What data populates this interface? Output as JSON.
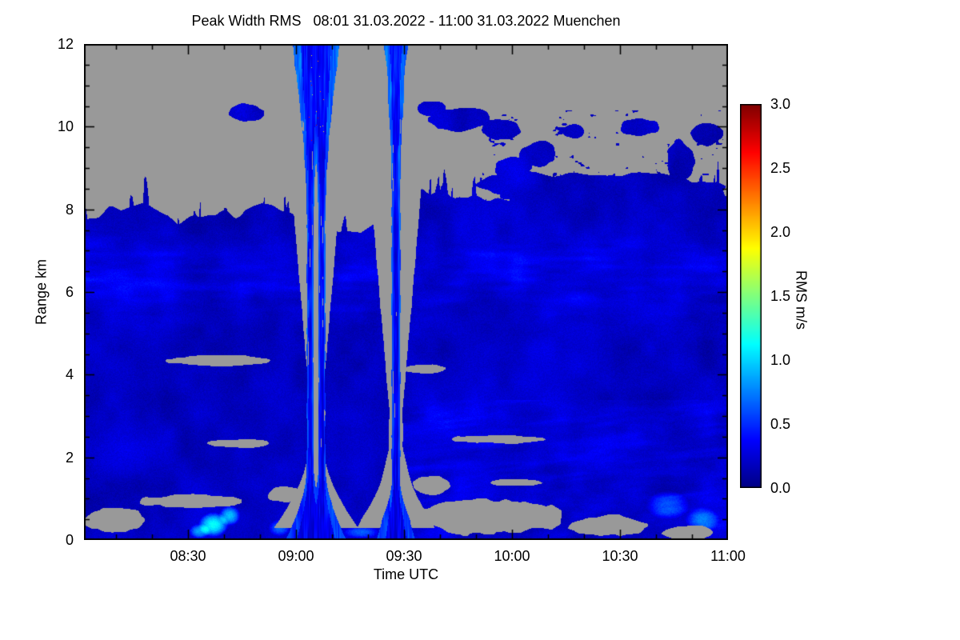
{
  "title": "Peak Width RMS   08:01 31.03.2022 - 11:00 31.03.2022 Muenchen",
  "axes": {
    "x": {
      "label": "Time UTC",
      "tick_labels": [
        "08:30",
        "09:00",
        "09:30",
        "10:00",
        "10:30",
        "11:00"
      ],
      "tick_hours": [
        8.5,
        9.0,
        9.5,
        10.0,
        10.5,
        11.0
      ],
      "minor_step_minutes": 10
    },
    "y": {
      "label": "Range km",
      "tick_labels": [
        "0",
        "2",
        "4",
        "6",
        "8",
        "10",
        "12"
      ],
      "tick_values": [
        0,
        2,
        4,
        6,
        8,
        10,
        12
      ],
      "minor_step_km": 0.5
    }
  },
  "colorbar": {
    "label": "RMS m/s",
    "tick_labels": [
      "0.0",
      "0.5",
      "1.0",
      "1.5",
      "2.0",
      "2.5",
      "3.0"
    ],
    "tick_values": [
      0,
      0.5,
      1.0,
      1.5,
      2.0,
      2.5,
      3.0
    ],
    "min": 0,
    "max": 3
  },
  "chart_data": {
    "type": "heatmap",
    "title": "Peak Width RMS 08:01 31.03.2022 - 11:00 31.03.2022 Muenchen",
    "xlabel": "Time UTC",
    "ylabel": "Range km",
    "value_label": "RMS m/s",
    "x_range_hours": [
      8.0167,
      11.0
    ],
    "y_range_km": [
      0,
      12
    ],
    "value_range": [
      0,
      3
    ],
    "background_no_data_color": "#999999",
    "colormap": [
      {
        "u": 0.0,
        "color": "#000082"
      },
      {
        "u": 0.125,
        "color": "#0000ff"
      },
      {
        "u": 0.375,
        "color": "#00ffff"
      },
      {
        "u": 0.625,
        "color": "#ffff00"
      },
      {
        "u": 0.875,
        "color": "#ff0000"
      },
      {
        "u": 1.0,
        "color": "#800000"
      }
    ],
    "field": {
      "base_value": 0.07,
      "noise_amp": 0.26,
      "slab_top_km": [
        [
          8.02,
          7.9
        ],
        [
          8.25,
          8.05
        ],
        [
          8.45,
          7.75
        ],
        [
          8.7,
          8.0
        ],
        [
          8.95,
          7.85
        ],
        [
          9.1,
          7.6
        ],
        [
          9.3,
          7.5
        ],
        [
          9.5,
          8.2
        ],
        [
          9.7,
          8.5
        ],
        [
          9.95,
          8.3
        ],
        [
          10.2,
          8.55
        ],
        [
          10.5,
          8.45
        ],
        [
          10.75,
          8.6
        ],
        [
          11.0,
          8.45
        ]
      ],
      "plumes": [
        {
          "center": 9.09,
          "cores": [
            9.063,
            9.117
          ],
          "core_halfwidth": 0.016,
          "base_halfwidth": 0.11,
          "base_top_km": 1.7,
          "flare_start_km": 7.8,
          "flare_halfwidth": 0.085,
          "warm_speckles_top": true
        },
        {
          "center": 9.46,
          "cores": [
            9.46
          ],
          "core_halfwidth": 0.02,
          "base_halfwidth": 0.1,
          "base_top_km": 1.5,
          "flare_start_km": 8.3,
          "flare_halfwidth": 0.055,
          "warm_speckles_top": false
        }
      ],
      "clouds": [
        [
          8.77,
          10.35,
          0.1,
          0.25
        ],
        [
          9.63,
          10.45,
          0.07,
          0.2
        ],
        [
          9.76,
          10.2,
          0.16,
          0.35
        ],
        [
          9.95,
          9.95,
          0.1,
          0.3
        ],
        [
          10.0,
          9.05,
          0.1,
          0.3
        ],
        [
          10.12,
          9.35,
          0.1,
          0.35
        ],
        [
          10.28,
          9.9,
          0.06,
          0.2
        ],
        [
          10.6,
          10.0,
          0.12,
          0.22
        ],
        [
          10.78,
          9.2,
          0.07,
          0.55
        ],
        [
          10.45,
          8.45,
          0.62,
          0.5
        ],
        [
          10.05,
          8.6,
          0.25,
          0.35
        ],
        [
          10.9,
          9.8,
          0.08,
          0.3
        ]
      ],
      "holes": [
        [
          8.15,
          0.5,
          0.16,
          0.35
        ],
        [
          8.5,
          0.95,
          0.28,
          0.2
        ],
        [
          8.62,
          4.35,
          0.27,
          0.16
        ],
        [
          8.72,
          2.35,
          0.18,
          0.13
        ],
        [
          8.95,
          1.1,
          0.1,
          0.22
        ],
        [
          9.62,
          1.35,
          0.1,
          0.28
        ],
        [
          9.6,
          4.15,
          0.12,
          0.12
        ],
        [
          9.93,
          2.45,
          0.28,
          0.13
        ],
        [
          9.9,
          0.55,
          0.42,
          0.5
        ],
        [
          10.45,
          0.35,
          0.22,
          0.3
        ],
        [
          10.82,
          0.18,
          0.14,
          0.2
        ],
        [
          10.02,
          1.4,
          0.15,
          0.1
        ]
      ],
      "bright_spots": [
        [
          8.615,
          0.38,
          0.07,
          0.3,
          0.9
        ],
        [
          8.69,
          0.6,
          0.05,
          0.25,
          0.7
        ],
        [
          8.55,
          0.22,
          0.05,
          0.18,
          0.6
        ],
        [
          8.92,
          0.3,
          0.05,
          0.2,
          0.45
        ],
        [
          10.72,
          0.85,
          0.1,
          0.35,
          0.45
        ],
        [
          10.88,
          0.5,
          0.08,
          0.3,
          0.5
        ],
        [
          9.3,
          0.2,
          0.08,
          0.15,
          0.4
        ]
      ]
    }
  }
}
